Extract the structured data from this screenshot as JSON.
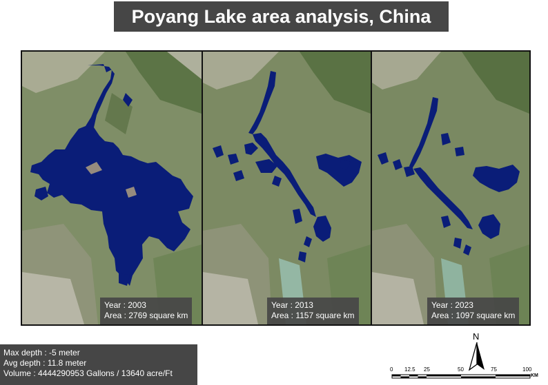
{
  "title": "Poyang Lake area analysis, China",
  "colors": {
    "water": "#0a1d78",
    "caption_bg": "#464646",
    "title_bg": "#464646",
    "imagery_base": "#7d8c67"
  },
  "panels": [
    {
      "year_label": "Year : 2003",
      "area_label": "Area : 2769 square km"
    },
    {
      "year_label": "Year : 2013",
      "area_label": "Area : 1157 square km"
    },
    {
      "year_label": "Year : 2023",
      "area_label": "Area : 1097 square km"
    }
  ],
  "stats": {
    "max_depth": "Max depth : -5 meter",
    "avg_depth": "Avg depth : 11.8 meter",
    "volume": "Volume : 4444290953 Gallons / 13640 acre/Ft"
  },
  "north_arrow": {
    "label": "N",
    "icon": "north-arrow-icon"
  },
  "scale_bar": {
    "ticks": [
      "0",
      "12.5",
      "25",
      "50",
      "75",
      "100"
    ],
    "unit": "KM"
  }
}
